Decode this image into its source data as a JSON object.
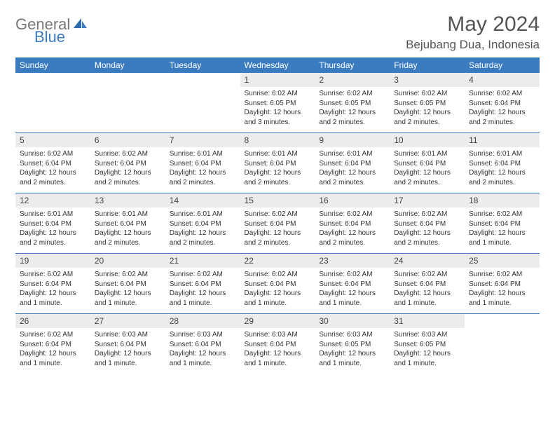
{
  "brand": {
    "part1": "General",
    "part2": "Blue"
  },
  "title": "May 2024",
  "location": "Bejubang Dua, Indonesia",
  "colors": {
    "header_bg": "#3b7bbf",
    "header_text": "#ffffff",
    "daynum_bg": "#ececec",
    "separator": "#3b7bbf",
    "body_text": "#333333",
    "title_text": "#555555"
  },
  "day_headers": [
    "Sunday",
    "Monday",
    "Tuesday",
    "Wednesday",
    "Thursday",
    "Friday",
    "Saturday"
  ],
  "weeks": [
    [
      null,
      null,
      null,
      {
        "n": "1",
        "sr": "6:02 AM",
        "ss": "6:05 PM",
        "dl": "12 hours and 3 minutes."
      },
      {
        "n": "2",
        "sr": "6:02 AM",
        "ss": "6:05 PM",
        "dl": "12 hours and 2 minutes."
      },
      {
        "n": "3",
        "sr": "6:02 AM",
        "ss": "6:05 PM",
        "dl": "12 hours and 2 minutes."
      },
      {
        "n": "4",
        "sr": "6:02 AM",
        "ss": "6:04 PM",
        "dl": "12 hours and 2 minutes."
      }
    ],
    [
      {
        "n": "5",
        "sr": "6:02 AM",
        "ss": "6:04 PM",
        "dl": "12 hours and 2 minutes."
      },
      {
        "n": "6",
        "sr": "6:02 AM",
        "ss": "6:04 PM",
        "dl": "12 hours and 2 minutes."
      },
      {
        "n": "7",
        "sr": "6:01 AM",
        "ss": "6:04 PM",
        "dl": "12 hours and 2 minutes."
      },
      {
        "n": "8",
        "sr": "6:01 AM",
        "ss": "6:04 PM",
        "dl": "12 hours and 2 minutes."
      },
      {
        "n": "9",
        "sr": "6:01 AM",
        "ss": "6:04 PM",
        "dl": "12 hours and 2 minutes."
      },
      {
        "n": "10",
        "sr": "6:01 AM",
        "ss": "6:04 PM",
        "dl": "12 hours and 2 minutes."
      },
      {
        "n": "11",
        "sr": "6:01 AM",
        "ss": "6:04 PM",
        "dl": "12 hours and 2 minutes."
      }
    ],
    [
      {
        "n": "12",
        "sr": "6:01 AM",
        "ss": "6:04 PM",
        "dl": "12 hours and 2 minutes."
      },
      {
        "n": "13",
        "sr": "6:01 AM",
        "ss": "6:04 PM",
        "dl": "12 hours and 2 minutes."
      },
      {
        "n": "14",
        "sr": "6:01 AM",
        "ss": "6:04 PM",
        "dl": "12 hours and 2 minutes."
      },
      {
        "n": "15",
        "sr": "6:02 AM",
        "ss": "6:04 PM",
        "dl": "12 hours and 2 minutes."
      },
      {
        "n": "16",
        "sr": "6:02 AM",
        "ss": "6:04 PM",
        "dl": "12 hours and 2 minutes."
      },
      {
        "n": "17",
        "sr": "6:02 AM",
        "ss": "6:04 PM",
        "dl": "12 hours and 2 minutes."
      },
      {
        "n": "18",
        "sr": "6:02 AM",
        "ss": "6:04 PM",
        "dl": "12 hours and 1 minute."
      }
    ],
    [
      {
        "n": "19",
        "sr": "6:02 AM",
        "ss": "6:04 PM",
        "dl": "12 hours and 1 minute."
      },
      {
        "n": "20",
        "sr": "6:02 AM",
        "ss": "6:04 PM",
        "dl": "12 hours and 1 minute."
      },
      {
        "n": "21",
        "sr": "6:02 AM",
        "ss": "6:04 PM",
        "dl": "12 hours and 1 minute."
      },
      {
        "n": "22",
        "sr": "6:02 AM",
        "ss": "6:04 PM",
        "dl": "12 hours and 1 minute."
      },
      {
        "n": "23",
        "sr": "6:02 AM",
        "ss": "6:04 PM",
        "dl": "12 hours and 1 minute."
      },
      {
        "n": "24",
        "sr": "6:02 AM",
        "ss": "6:04 PM",
        "dl": "12 hours and 1 minute."
      },
      {
        "n": "25",
        "sr": "6:02 AM",
        "ss": "6:04 PM",
        "dl": "12 hours and 1 minute."
      }
    ],
    [
      {
        "n": "26",
        "sr": "6:02 AM",
        "ss": "6:04 PM",
        "dl": "12 hours and 1 minute."
      },
      {
        "n": "27",
        "sr": "6:03 AM",
        "ss": "6:04 PM",
        "dl": "12 hours and 1 minute."
      },
      {
        "n": "28",
        "sr": "6:03 AM",
        "ss": "6:04 PM",
        "dl": "12 hours and 1 minute."
      },
      {
        "n": "29",
        "sr": "6:03 AM",
        "ss": "6:04 PM",
        "dl": "12 hours and 1 minute."
      },
      {
        "n": "30",
        "sr": "6:03 AM",
        "ss": "6:05 PM",
        "dl": "12 hours and 1 minute."
      },
      {
        "n": "31",
        "sr": "6:03 AM",
        "ss": "6:05 PM",
        "dl": "12 hours and 1 minute."
      },
      null
    ]
  ],
  "labels": {
    "sunrise": "Sunrise:",
    "sunset": "Sunset:",
    "daylight": "Daylight:"
  }
}
